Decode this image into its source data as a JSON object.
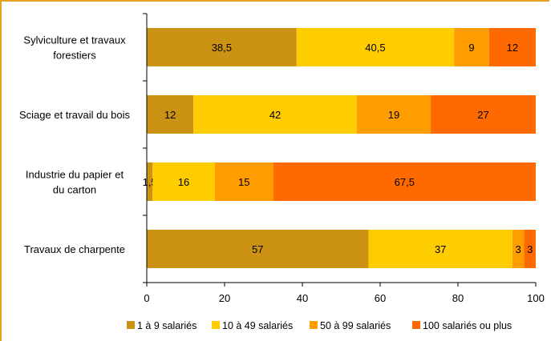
{
  "chart_data": {
    "type": "bar",
    "orientation": "horizontal",
    "stacked": true,
    "categories": [
      [
        "Sylviculture et travaux",
        "forestiers"
      ],
      [
        "Sciage et travail du bois"
      ],
      [
        "Industrie du papier et",
        "du carton"
      ],
      [
        "Travaux de charpente"
      ]
    ],
    "series": [
      {
        "name": "1 à 9 salariés",
        "color": "#cc9214",
        "values": [
          38.5,
          12,
          1.5,
          57
        ],
        "labels": [
          "38,5",
          "12",
          "1,5",
          "57"
        ]
      },
      {
        "name": "10 à 49 salariés",
        "color": "#ffcc00",
        "values": [
          40.5,
          42,
          16,
          37
        ],
        "labels": [
          "40,5",
          "42",
          "16",
          "37"
        ]
      },
      {
        "name": "50 à 99 salariés",
        "color": "#ff9d00",
        "values": [
          9,
          19,
          15,
          3
        ],
        "labels": [
          "9",
          "19",
          "15",
          "3"
        ]
      },
      {
        "name": "100 salariés ou plus",
        "color": "#ff6a00",
        "values": [
          12,
          27,
          67.5,
          3
        ],
        "labels": [
          "12",
          "27",
          "67,5",
          "3"
        ]
      }
    ],
    "xlim": [
      0,
      100
    ],
    "xticks": [
      "0",
      "20",
      "40",
      "60",
      "80",
      "100"
    ],
    "grid": false,
    "legend_position": "bottom"
  },
  "frame_color": "#e3a21a"
}
